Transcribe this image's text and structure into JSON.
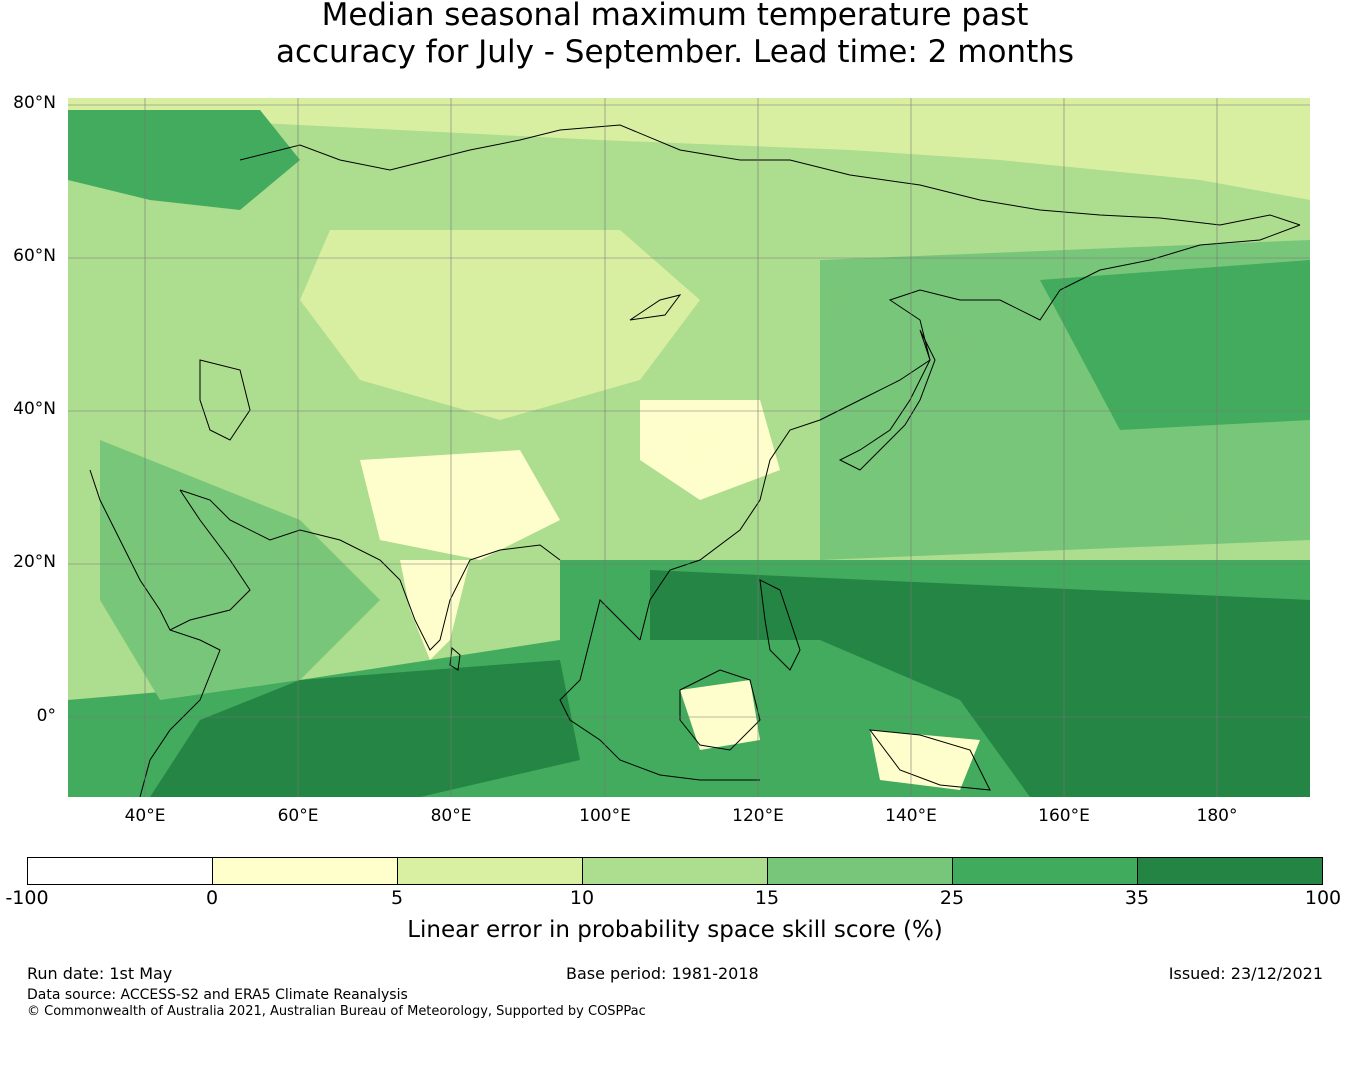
{
  "title": {
    "line1": "Median seasonal maximum temperature past",
    "line2": "accuracy for July - September. Lead time: 2 months"
  },
  "map": {
    "lat_labels": [
      "80°N",
      "60°N",
      "40°N",
      "20°N",
      "0°"
    ],
    "lon_labels": [
      "40°E",
      "60°E",
      "80°E",
      "100°E",
      "120°E",
      "140°E",
      "160°E",
      "180°"
    ],
    "land_color": "#a8dc8c",
    "ocean_color": "#5cb86c",
    "gridline_color": "#777777"
  },
  "colorbar": {
    "colors": [
      "#ffffff",
      "#ffffcc",
      "#d9f0a3",
      "#addd8e",
      "#78c679",
      "#41ab5d",
      "#238443"
    ],
    "ticks": [
      "-100",
      "0",
      "5",
      "10",
      "15",
      "25",
      "35",
      "100"
    ],
    "label": "Linear error in probability space skill score (%)"
  },
  "footer": {
    "run_date": "Run date: 1st May",
    "base_period": "Base period: 1981-2018",
    "issued": "Issued: 23/12/2021",
    "data_source": "Data source: ACCESS-S2 and ERA5 Climate Reanalysis",
    "copyright": "© Commonwealth of Australia 2021, Australian Bureau of Meteorology, Supported by COSPPac"
  }
}
